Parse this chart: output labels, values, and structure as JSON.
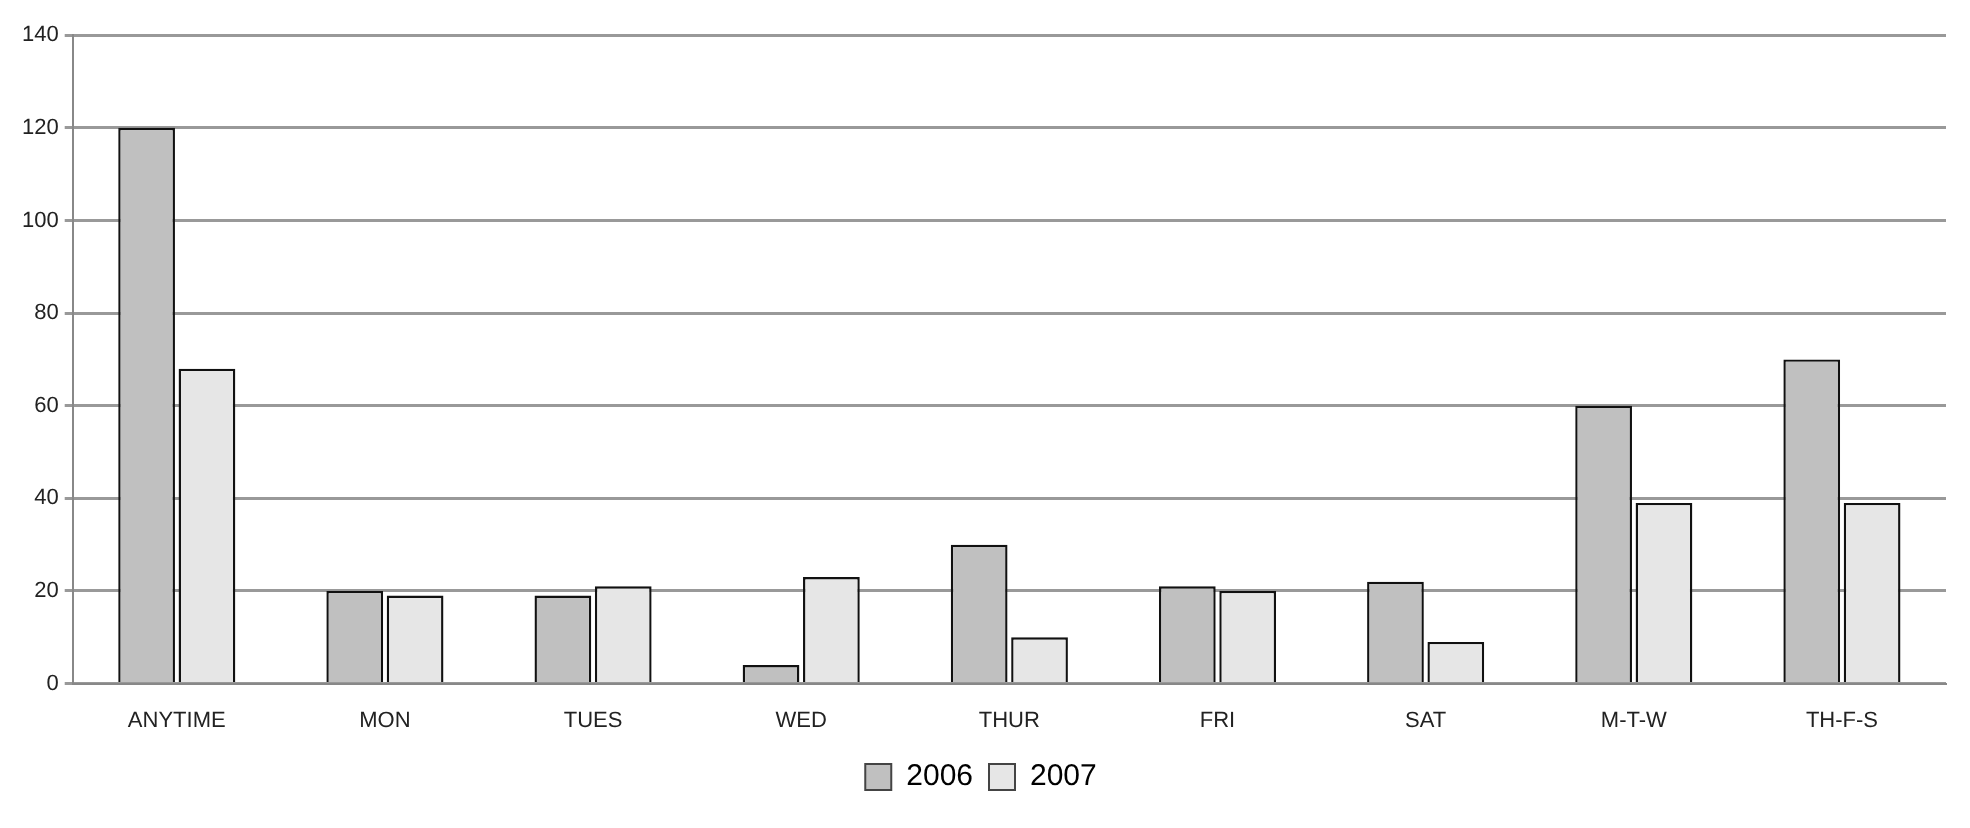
{
  "chart_data": {
    "type": "bar",
    "categories": [
      "ANYTIME",
      "MON",
      "TUES",
      "WED",
      "THUR",
      "FRI",
      "SAT",
      "M-T-W",
      "TH-F-S"
    ],
    "series": [
      {
        "name": "2006",
        "color": "#c0c0c0",
        "values": [
          120,
          20,
          19,
          4,
          30,
          21,
          22,
          60,
          70
        ]
      },
      {
        "name": "2007",
        "color": "#e6e6e6",
        "values": [
          68,
          19,
          21,
          23,
          10,
          20,
          9,
          39,
          39
        ]
      }
    ],
    "ylim": [
      0,
      140
    ],
    "yticks": [
      0,
      20,
      40,
      60,
      80,
      100,
      120,
      140
    ],
    "grid": "y",
    "legend": "bottom"
  }
}
